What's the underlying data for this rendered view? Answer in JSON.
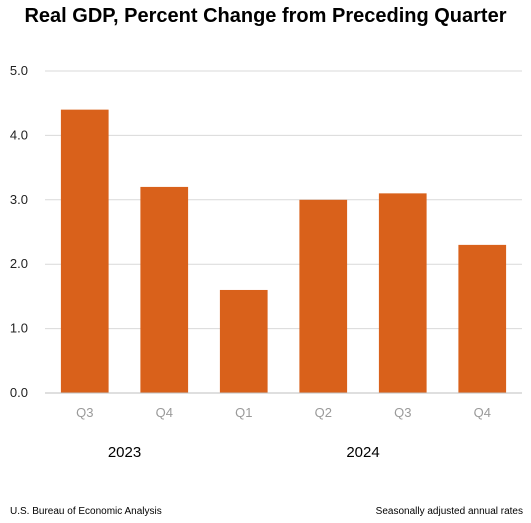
{
  "chart_data": {
    "type": "bar",
    "title": "Real GDP, Percent Change from Preceding Quarter",
    "categories": [
      "Q3",
      "Q4",
      "Q1",
      "Q2",
      "Q3",
      "Q4"
    ],
    "values": [
      4.4,
      3.2,
      1.6,
      3.0,
      3.1,
      2.3
    ],
    "groups": [
      {
        "label": "2023",
        "start": 0,
        "count": 2
      },
      {
        "label": "2024",
        "start": 2,
        "count": 4
      }
    ],
    "ylim": [
      0,
      5
    ],
    "yticks": [
      "0.0",
      "1.0",
      "2.0",
      "3.0",
      "4.0",
      "5.0"
    ],
    "bar_color": "#d9611b",
    "grid": true,
    "legend": "none"
  },
  "footer": {
    "source": "U.S. Bureau of Economic Analysis",
    "note": "Seasonally adjusted annual rates"
  }
}
